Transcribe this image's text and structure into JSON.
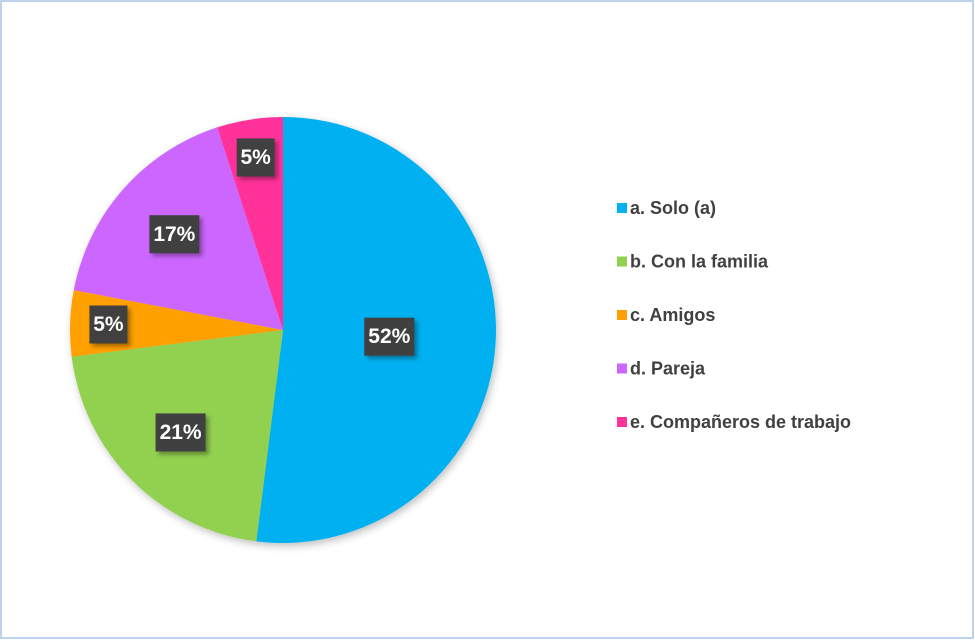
{
  "chart_data": {
    "type": "pie",
    "categories": [
      "a. Solo (a)",
      "b. Con la familia",
      "c. Amigos",
      "d. Pareja",
      "e. Compañeros de trabajo"
    ],
    "values": [
      52,
      21,
      5,
      17,
      5
    ],
    "value_labels": [
      "52%",
      "21%",
      "5%",
      "17%",
      "5%"
    ],
    "colors": [
      "#00b0f0",
      "#92d050",
      "#ffa000",
      "#cc66ff",
      "#ff3399"
    ],
    "legend": "right"
  }
}
